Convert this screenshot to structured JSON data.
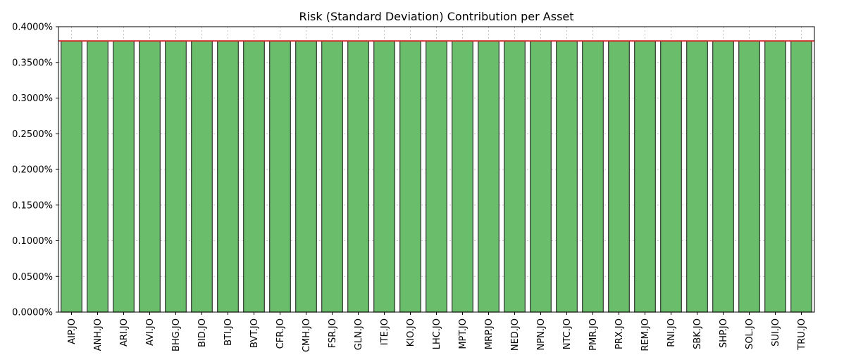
{
  "chart_data": {
    "type": "bar",
    "title": "Risk (Standard Deviation) Contribution per Asset",
    "xlabel": "",
    "ylabel": "",
    "categories": [
      "AIP.JO",
      "ANH.JO",
      "ARI.JO",
      "AVI.JO",
      "BHG.JO",
      "BID.JO",
      "BTI.JO",
      "BVT.JO",
      "CFR.JO",
      "CMH.JO",
      "FSR.JO",
      "GLN.JO",
      "ITE.JO",
      "KIO.JO",
      "LHC.JO",
      "MPT.JO",
      "MRP.JO",
      "NED.JO",
      "NPN.JO",
      "NTC.JO",
      "PMR.JO",
      "PRX.JO",
      "REM.JO",
      "RNI.JO",
      "SBK.JO",
      "SHP.JO",
      "SOL.JO",
      "SUI.JO",
      "TRU.JO"
    ],
    "values": [
      0.38,
      0.38,
      0.38,
      0.38,
      0.38,
      0.38,
      0.38,
      0.38,
      0.38,
      0.38,
      0.38,
      0.38,
      0.38,
      0.38,
      0.38,
      0.38,
      0.38,
      0.38,
      0.38,
      0.38,
      0.38,
      0.38,
      0.38,
      0.38,
      0.38,
      0.38,
      0.38,
      0.38,
      0.38
    ],
    "value_unit": "percent",
    "ylim": [
      0,
      0.4
    ],
    "yticks": [
      "0.0000%",
      "0.0500%",
      "0.1000%",
      "0.1500%",
      "0.2000%",
      "0.2500%",
      "0.3000%",
      "0.3500%",
      "0.4000%"
    ],
    "reference_line": 0.38,
    "grid": true,
    "colors": {
      "bar_fill": "#6abd6a",
      "bar_edge": "#333333",
      "reference_line": "#d62728",
      "grid": "#b0b0b0"
    }
  }
}
